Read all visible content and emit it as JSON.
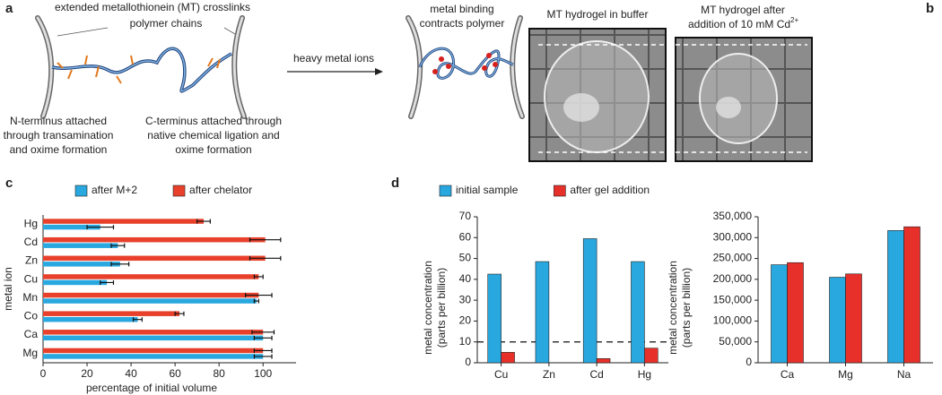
{
  "panel_a": {
    "label": "a",
    "crosslinks": "extended metallothionein (MT) crosslinks",
    "chains": "polymer chains",
    "n_terminus": [
      "N-terminus attached",
      "through transamination",
      "and oxime formation"
    ],
    "c_terminus": [
      "C-terminus attached through",
      "native chemical ligation and",
      "oxime formation"
    ],
    "arrow": "heavy metal ions",
    "result": [
      "metal binding",
      "contracts polymer"
    ]
  },
  "panel_b": {
    "label": "b",
    "left_title": "MT hydrogel in buffer",
    "right_title": [
      "MT hydrogel after",
      "addition of 10 mM Cd"
    ],
    "right_title_sup": "2+"
  },
  "chart_data": [
    {
      "type": "bar",
      "panel": "c",
      "orientation": "horizontal",
      "categories": [
        "Hg",
        "Cd",
        "Zn",
        "Cu",
        "Mn",
        "Co",
        "Ca",
        "Mg"
      ],
      "series": [
        {
          "name": "after M+2",
          "color": "#29a8e0",
          "values": [
            26,
            34,
            35,
            29,
            97,
            43,
            100,
            100
          ],
          "errors": [
            6,
            3,
            4,
            3,
            1,
            2,
            4,
            4
          ]
        },
        {
          "name": "after chelator",
          "color": "#e8402a",
          "values": [
            73,
            101,
            101,
            98,
            98,
            62,
            100,
            100
          ],
          "errors": [
            3,
            7,
            7,
            2,
            6,
            2,
            5,
            4
          ]
        }
      ],
      "xlim": [
        0,
        115
      ],
      "xticks": [
        0,
        20,
        40,
        60,
        80,
        100
      ],
      "xlabel": "percentage of initial volume",
      "ylabel": "metal ion",
      "legend": "top"
    },
    {
      "type": "bar",
      "panel": "d",
      "orientation": "vertical",
      "categories": [
        "Cu",
        "Zn",
        "Cd",
        "Hg"
      ],
      "series": [
        {
          "name": "initial sample",
          "color": "#29a8e0",
          "values": [
            42.5,
            48.5,
            59.5,
            48.5
          ]
        },
        {
          "name": "after gel addition",
          "color": "#e8302a",
          "values": [
            5,
            null,
            2,
            7
          ]
        }
      ],
      "ylim": [
        0,
        70
      ],
      "yticks": [
        0,
        10,
        20,
        30,
        40,
        50,
        60,
        70
      ],
      "ylabel": [
        "metal concentration",
        "(parts per billion)"
      ],
      "reference_line": 10,
      "legend": "top"
    },
    {
      "type": "bar",
      "orientation": "vertical",
      "categories": [
        "Ca",
        "Mg",
        "Na"
      ],
      "series": [
        {
          "color": "#29a8e0",
          "values": [
            235000,
            205000,
            317000
          ]
        },
        {
          "color": "#e8302a",
          "values": [
            240000,
            213000,
            326000
          ]
        }
      ],
      "ylim": [
        0,
        350000
      ],
      "yticks": [
        0,
        {
          "value": 50000,
          "label": "50,000"
        },
        {
          "value": 100000,
          "label": "100,000"
        },
        {
          "value": 150000,
          "label": "150,000"
        },
        {
          "value": 200000,
          "label": "200,000"
        },
        {
          "value": 250000,
          "label": "250,000"
        },
        {
          "value": 300000,
          "label": "300,000"
        },
        {
          "value": 350000,
          "label": "350,000"
        }
      ],
      "ylabel": [
        "metal concentration",
        "(parts per billion)"
      ]
    }
  ]
}
